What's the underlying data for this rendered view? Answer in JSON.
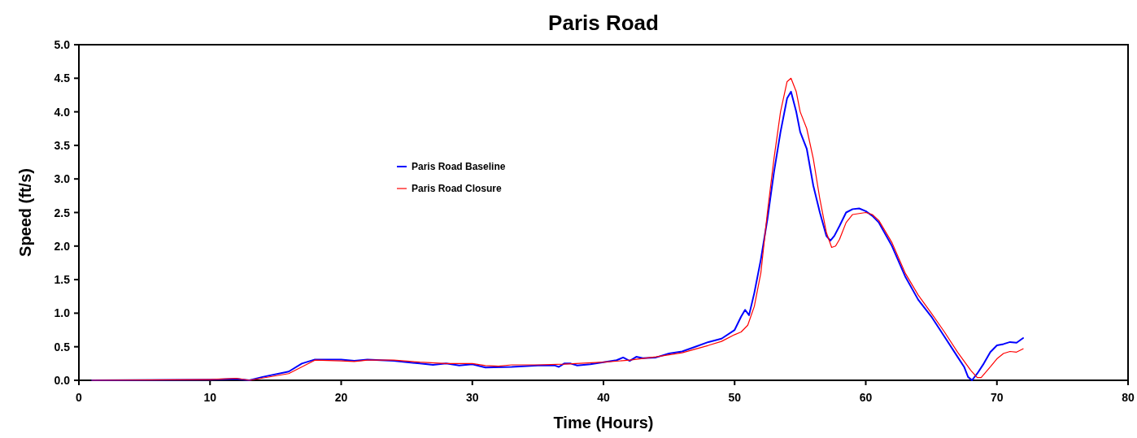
{
  "chart_data": {
    "type": "line",
    "title": "Paris Road",
    "xlabel": "Time (Hours)",
    "ylabel": "Speed (ft/s)",
    "xlim": [
      0,
      80
    ],
    "xticks": [
      0,
      10,
      20,
      30,
      40,
      50,
      60,
      70,
      80
    ],
    "ylim": [
      0,
      5
    ],
    "yticks": [
      {
        "value": 0,
        "label": "0.0"
      },
      {
        "value": 0.5,
        "label": "0.5"
      },
      {
        "value": 1,
        "label": "1.0"
      },
      {
        "value": 1.5,
        "label": "1.5"
      },
      {
        "value": 2,
        "label": "2.0"
      },
      {
        "value": 2.5,
        "label": "2.5"
      },
      {
        "value": 3,
        "label": "3.0"
      },
      {
        "value": 3.5,
        "label": "3.5"
      },
      {
        "value": 4,
        "label": "4.0"
      },
      {
        "value": 4.5,
        "label": "4.5"
      },
      {
        "value": 5,
        "label": "5.0"
      }
    ],
    "grid": false,
    "legend": "top left",
    "marker": "none",
    "line_style": "solid",
    "series": [
      {
        "name": "Paris Road Baseline",
        "color": "#0000ff",
        "x": [
          1,
          10,
          12,
          13,
          14,
          16,
          17,
          18,
          20,
          21,
          22,
          24,
          26,
          27,
          28,
          29,
          30,
          31,
          33,
          35,
          36.3,
          36.6,
          37,
          37.5,
          38,
          39,
          40,
          41,
          41.5,
          42,
          42.5,
          43,
          44,
          45,
          46,
          47,
          48,
          49,
          50,
          50.5,
          50.8,
          51.1,
          51.5,
          52,
          52.5,
          53,
          53.5,
          54,
          54.3,
          54.7,
          55,
          55.5,
          56,
          56.5,
          57,
          57.3,
          57.6,
          58,
          58.5,
          59,
          59.5,
          60,
          60.5,
          61,
          62,
          63,
          64,
          65,
          66,
          67,
          67.5,
          67.8,
          68.1,
          68.5,
          69,
          69.5,
          70,
          70.5,
          71,
          71.5,
          72
        ],
        "values": [
          0,
          0.01,
          0.02,
          0,
          0.05,
          0.13,
          0.25,
          0.31,
          0.31,
          0.29,
          0.31,
          0.29,
          0.25,
          0.23,
          0.25,
          0.22,
          0.24,
          0.19,
          0.2,
          0.22,
          0.22,
          0.2,
          0.25,
          0.25,
          0.22,
          0.24,
          0.27,
          0.3,
          0.34,
          0.29,
          0.35,
          0.33,
          0.34,
          0.4,
          0.43,
          0.5,
          0.57,
          0.62,
          0.75,
          0.95,
          1.05,
          0.97,
          1.3,
          1.8,
          2.4,
          3.1,
          3.7,
          4.2,
          4.3,
          4,
          3.7,
          3.45,
          2.9,
          2.5,
          2.15,
          2.08,
          2.15,
          2.3,
          2.5,
          2.55,
          2.56,
          2.52,
          2.45,
          2.35,
          2,
          1.55,
          1.2,
          0.95,
          0.65,
          0.35,
          0.2,
          0.05,
          0,
          0.1,
          0.25,
          0.42,
          0.52,
          0.54,
          0.57,
          0.56,
          0.63
        ]
      },
      {
        "name": "Paris Road Closure",
        "color": "#ff0000",
        "x": [
          1,
          10,
          12,
          13,
          16,
          18,
          20,
          21,
          22,
          24,
          26,
          28,
          30,
          31,
          32,
          33,
          35,
          37,
          40,
          42,
          44,
          46,
          48,
          49,
          50,
          50.5,
          51,
          51.5,
          52,
          52.5,
          53,
          53.5,
          54,
          54.3,
          54.7,
          55,
          55.5,
          56,
          56.5,
          57,
          57.4,
          57.7,
          58,
          58.5,
          59,
          60,
          60.5,
          61,
          62,
          63,
          64,
          65,
          66,
          67,
          68,
          68.5,
          68.8,
          69.5,
          70,
          70.5,
          71,
          71.5,
          72
        ],
        "values": [
          0,
          0.01,
          0.03,
          0,
          0.1,
          0.3,
          0.29,
          0.28,
          0.3,
          0.3,
          0.27,
          0.25,
          0.25,
          0.22,
          0.21,
          0.23,
          0.23,
          0.24,
          0.27,
          0.3,
          0.35,
          0.41,
          0.52,
          0.58,
          0.68,
          0.72,
          0.82,
          1.1,
          1.6,
          2.5,
          3.3,
          4,
          4.45,
          4.5,
          4.3,
          4,
          3.75,
          3.3,
          2.7,
          2.2,
          1.98,
          2,
          2.1,
          2.35,
          2.47,
          2.5,
          2.47,
          2.38,
          2.05,
          1.6,
          1.27,
          1,
          0.72,
          0.42,
          0.15,
          0.04,
          0.04,
          0.2,
          0.32,
          0.4,
          0.43,
          0.42,
          0.47
        ]
      }
    ]
  }
}
